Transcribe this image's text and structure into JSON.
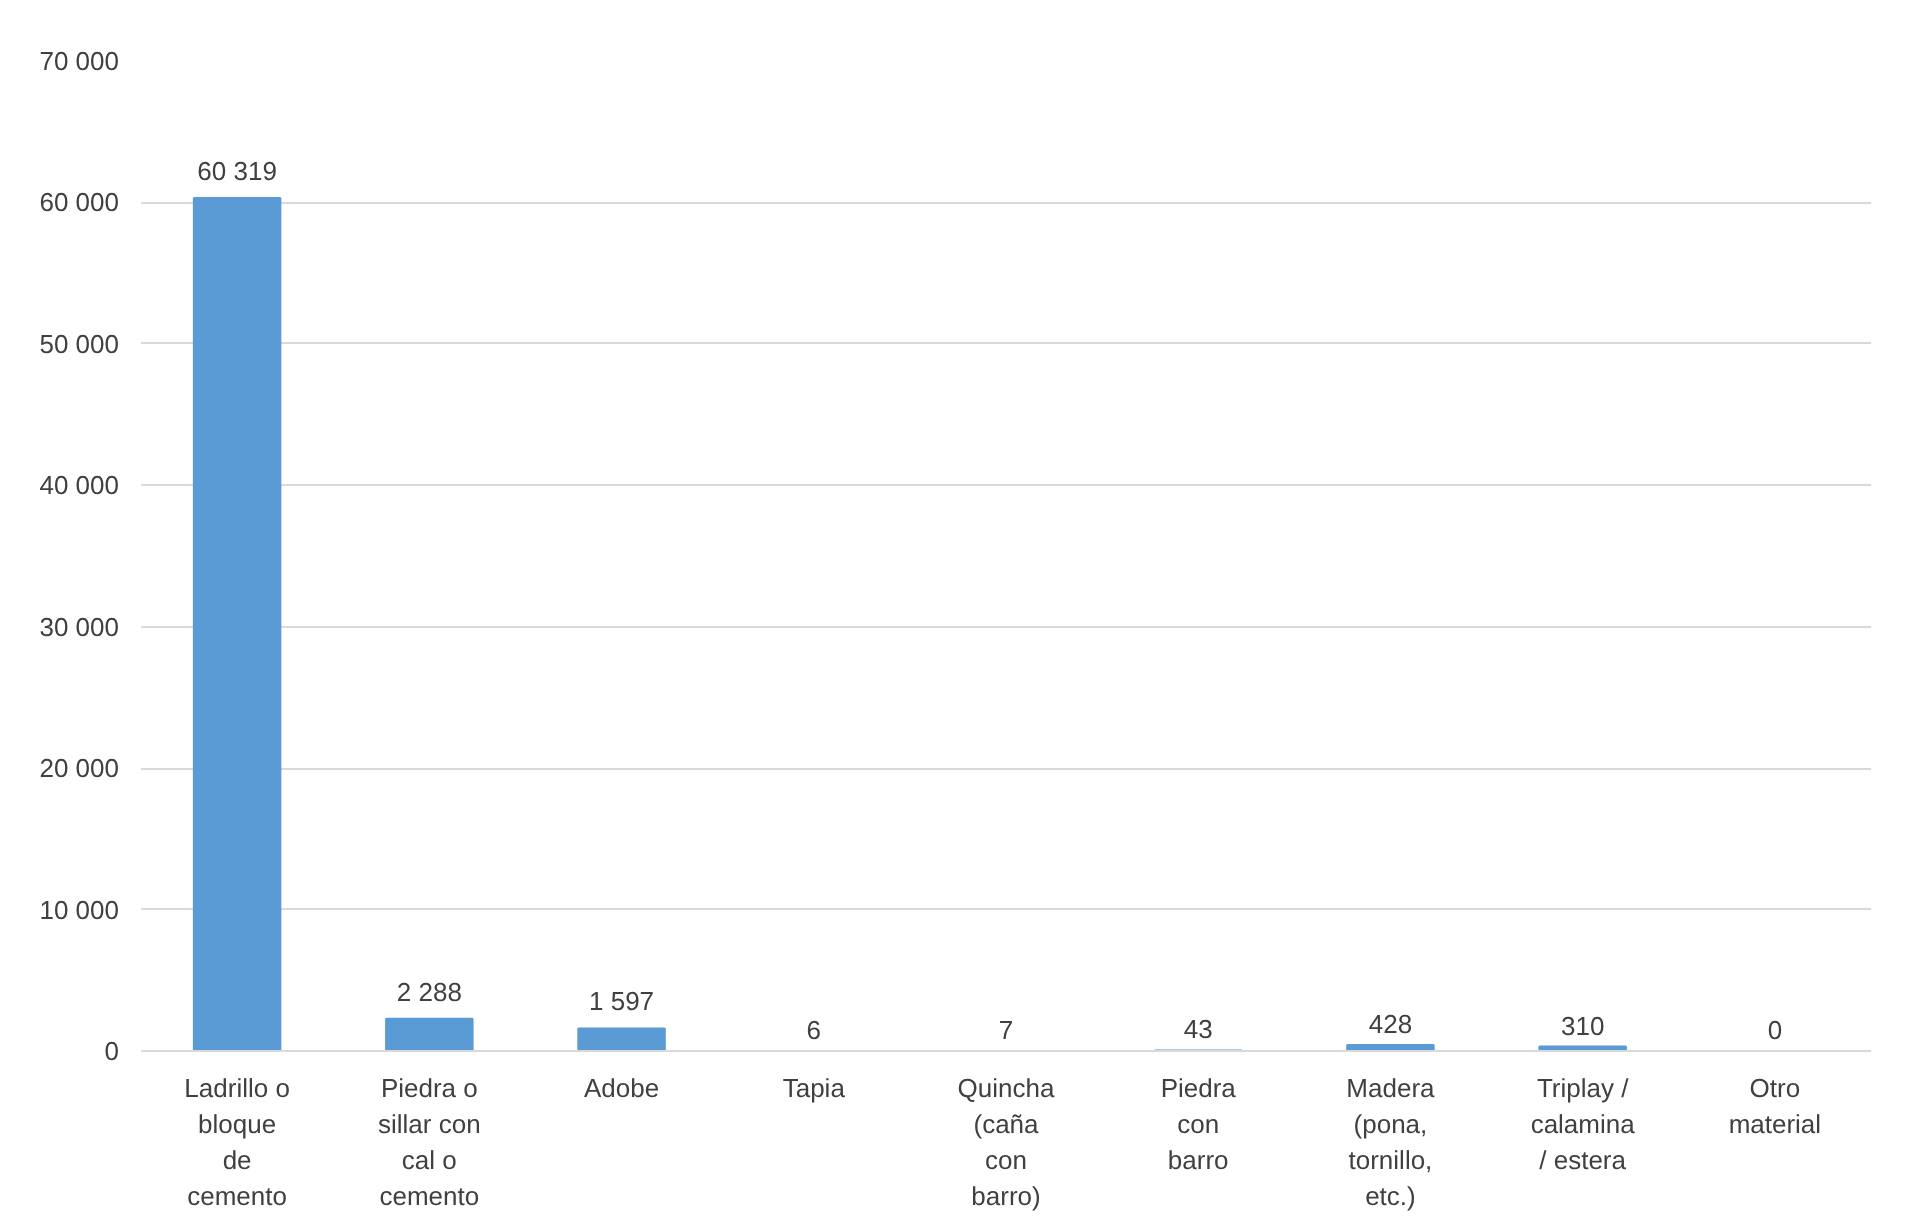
{
  "chart_data": {
    "type": "bar",
    "categories": [
      "Ladrillo o\nbloque\nde\ncemento",
      "Piedra o\nsillar con\ncal o\ncemento",
      "Adobe",
      "Tapia",
      "Quincha\n(caña\ncon\nbarro)",
      "Piedra\ncon\nbarro",
      "Madera\n(pona,\ntornillo,\netc.)",
      "Triplay /\ncalamina\n/ estera",
      "Otro\nmaterial"
    ],
    "values": [
      60319,
      2288,
      1597,
      6,
      7,
      43,
      428,
      310,
      0
    ],
    "value_labels": [
      "60 319",
      "2 288",
      "1 597",
      "6",
      "7",
      "43",
      "428",
      "310",
      "0"
    ],
    "color": "#5b9bd5",
    "ylim": [
      0,
      70000
    ],
    "yticks": [
      0,
      {
        "value": 10000,
        "label": "10 000"
      },
      {
        "value": 20000,
        "label": "20 000"
      },
      {
        "value": 30000,
        "label": "30 000"
      },
      {
        "value": 40000,
        "label": "40 000"
      },
      {
        "value": 50000,
        "label": "50 000"
      },
      {
        "value": 60000,
        "label": "60 000"
      },
      {
        "value": 70000,
        "label": "70 000"
      }
    ],
    "grid": "y"
  }
}
